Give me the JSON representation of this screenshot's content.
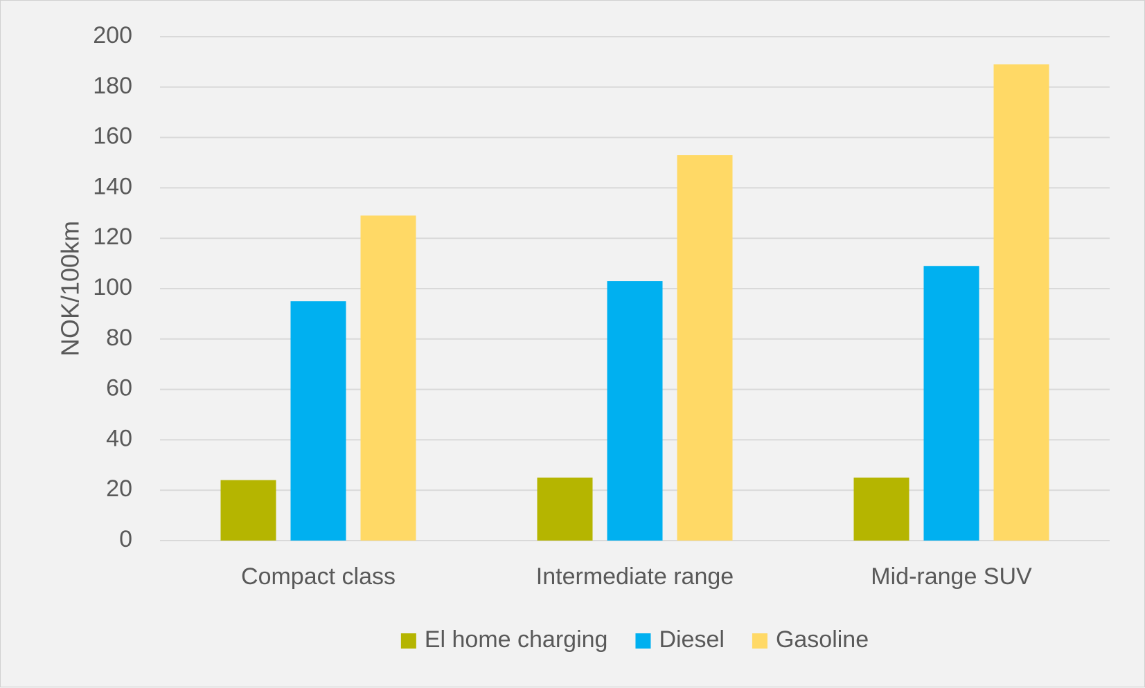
{
  "chart_data": {
    "type": "bar",
    "title": "",
    "xlabel": "",
    "ylabel": "NOK/100km",
    "ylim": [
      0,
      200
    ],
    "yticks": [
      0,
      20,
      40,
      60,
      80,
      100,
      120,
      140,
      160,
      180,
      200
    ],
    "grid": true,
    "legend_position": "bottom",
    "categories": [
      "Compact class",
      "Intermediate range",
      "Mid-range SUV"
    ],
    "series": [
      {
        "name": "El home charging",
        "color": "#b5b500",
        "values": [
          24,
          25,
          25
        ]
      },
      {
        "name": "Diesel",
        "color": "#00b0f0",
        "values": [
          95,
          103,
          109
        ]
      },
      {
        "name": "Gasoline",
        "color": "#ffd966",
        "values": [
          129,
          153,
          189
        ]
      }
    ]
  }
}
